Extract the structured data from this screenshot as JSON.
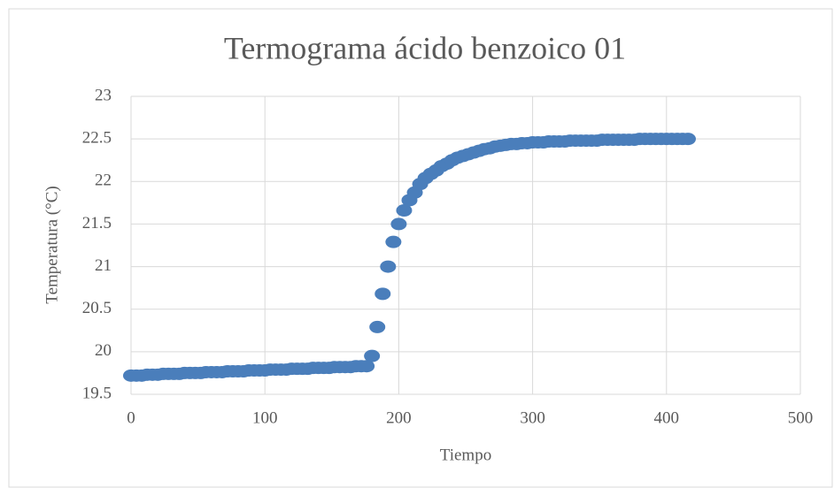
{
  "chart_data": {
    "type": "scatter",
    "title": "Termograma ácido benzoico 01",
    "x_label": "Tiempo",
    "y_label": "Temperatura  (°C)",
    "series": [
      {
        "name": "Temperatura",
        "color": "#4a7ebb",
        "x": [
          0,
          4,
          8,
          12,
          16,
          20,
          24,
          28,
          32,
          36,
          40,
          44,
          48,
          52,
          56,
          60,
          64,
          68,
          72,
          76,
          80,
          84,
          88,
          92,
          96,
          100,
          104,
          108,
          112,
          116,
          120,
          124,
          128,
          132,
          136,
          140,
          144,
          148,
          152,
          156,
          160,
          164,
          168,
          172,
          176,
          180,
          184,
          188,
          192,
          196,
          200,
          204,
          208,
          212,
          216,
          220,
          224,
          228,
          232,
          236,
          240,
          244,
          248,
          252,
          256,
          260,
          264,
          268,
          272,
          276,
          280,
          284,
          288,
          292,
          296,
          300,
          304,
          308,
          312,
          316,
          320,
          324,
          328,
          332,
          336,
          340,
          344,
          348,
          352,
          356,
          360,
          364,
          368,
          372,
          376,
          380,
          384,
          388,
          392,
          396,
          400,
          404,
          408,
          412,
          416
        ],
        "values": [
          19.72,
          19.72,
          19.72,
          19.73,
          19.73,
          19.73,
          19.74,
          19.74,
          19.74,
          19.74,
          19.75,
          19.75,
          19.75,
          19.75,
          19.76,
          19.76,
          19.76,
          19.76,
          19.77,
          19.77,
          19.77,
          19.77,
          19.78,
          19.78,
          19.78,
          19.78,
          19.79,
          19.79,
          19.79,
          19.79,
          19.8,
          19.8,
          19.8,
          19.8,
          19.81,
          19.81,
          19.81,
          19.81,
          19.82,
          19.82,
          19.82,
          19.82,
          19.83,
          19.83,
          19.83,
          19.95,
          20.29,
          20.68,
          21.0,
          21.29,
          21.5,
          21.66,
          21.78,
          21.87,
          21.97,
          22.04,
          22.09,
          22.13,
          22.18,
          22.21,
          22.25,
          22.28,
          22.3,
          22.32,
          22.34,
          22.36,
          22.38,
          22.39,
          22.41,
          22.42,
          22.43,
          22.44,
          22.44,
          22.45,
          22.45,
          22.46,
          22.46,
          22.46,
          22.47,
          22.47,
          22.47,
          22.47,
          22.48,
          22.48,
          22.48,
          22.48,
          22.48,
          22.48,
          22.49,
          22.49,
          22.49,
          22.49,
          22.49,
          22.49,
          22.49,
          22.5,
          22.5,
          22.5,
          22.5,
          22.5,
          22.5,
          22.5,
          22.5,
          22.5,
          22.5
        ]
      }
    ],
    "xlim": [
      0,
      500
    ],
    "xticks": [
      0,
      100,
      200,
      300,
      400,
      500
    ],
    "ylim": [
      19.5,
      23
    ],
    "yticks": [
      19.5,
      20,
      20.5,
      21,
      21.5,
      22,
      22.5,
      23
    ],
    "grid": true
  }
}
